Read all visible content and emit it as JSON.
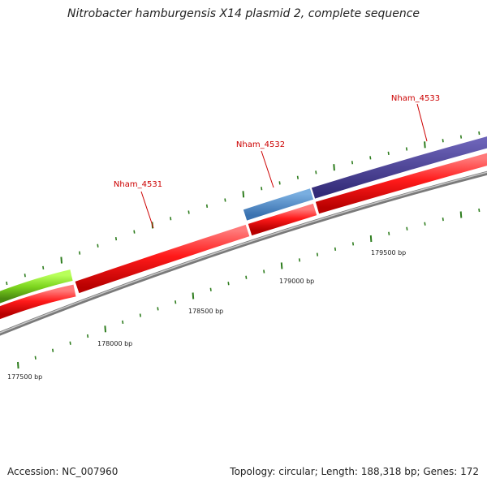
{
  "title": "Nitrobacter hamburgensis X14 plasmid 2, complete sequence",
  "footer": {
    "accession": "Accession: NC_007960",
    "summary": "Topology: circular; Length: 188,318 bp; Genes: 172"
  },
  "colors": {
    "cds_forward": "#ff0000",
    "gene_blue": "#4a84c0",
    "gene_purple": "#463c90",
    "gene_green": "#80d820",
    "backbone": "#888888",
    "tick": "#2e7d1e",
    "gene_label": "#cc0000"
  },
  "map": {
    "type": "circular-genome-map-zoomed",
    "visible_range_bp": [
      177400,
      179800
    ],
    "ruler_labels": [
      {
        "bp": 177500,
        "text": "177500 bp"
      },
      {
        "bp": 178000,
        "text": "178000 bp"
      },
      {
        "bp": 178500,
        "text": "178500 bp"
      },
      {
        "bp": 179000,
        "text": "179000 bp"
      },
      {
        "bp": 179500,
        "text": "179500 bp"
      }
    ],
    "genes": [
      {
        "label": "Nham_4531"
      },
      {
        "label": "Nham_4532"
      },
      {
        "label": "Nham_4533"
      }
    ]
  }
}
